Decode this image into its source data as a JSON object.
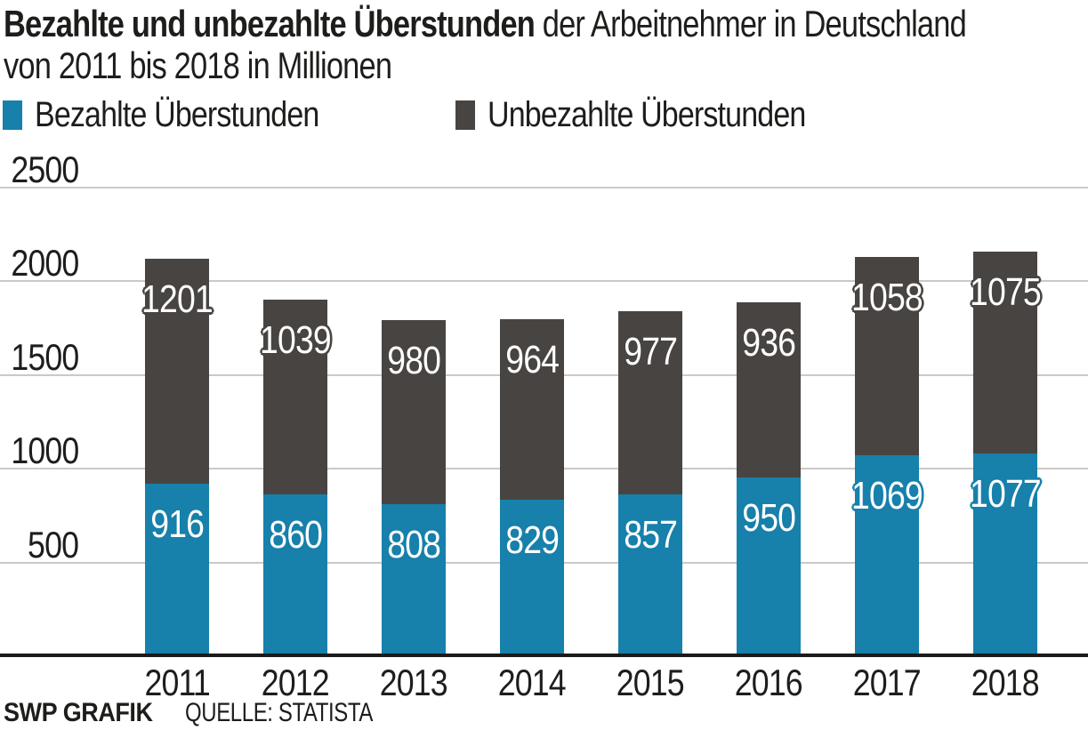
{
  "title": {
    "bold": "Bezahlte und unbezahlte Überstunden",
    "regular": " der Arbeitnehmer in Deutschland",
    "line2": "von 2011 bis 2018 in Millionen"
  },
  "legend": [
    {
      "label": "Bezahlte Überstunden",
      "color": "#1780ab"
    },
    {
      "label": "Unbezahlte Überstunden",
      "color": "#484442"
    }
  ],
  "footer": {
    "brand": "SWP GRAFIK",
    "source": "QUELLE: STATISTA"
  },
  "colors": {
    "paid": "#1780ab",
    "unpaid": "#484442",
    "gridline": "#cbc9c7",
    "axis_line": "#1a1a1a",
    "text": "#1d1d1b",
    "bar_label_text": "#ffffff"
  },
  "chart_data": {
    "type": "bar",
    "stacked": true,
    "title": "Bezahlte und unbezahlte Überstunden der Arbeitnehmer in Deutschland von 2011 bis 2018 in Millionen",
    "xlabel": "",
    "ylabel": "",
    "categories": [
      "2011",
      "2012",
      "2013",
      "2014",
      "2015",
      "2016",
      "2017",
      "2018"
    ],
    "series": [
      {
        "name": "Bezahlte Überstunden",
        "color": "#1780ab",
        "values": [
          916,
          860,
          808,
          829,
          857,
          950,
          1069,
          1077
        ]
      },
      {
        "name": "Unbezahlte Überstunden",
        "color": "#484442",
        "values": [
          1201,
          1039,
          980,
          964,
          977,
          936,
          1058,
          1075
        ]
      }
    ],
    "ylim": [
      0,
      2500
    ],
    "yticks": [
      500,
      1000,
      1500,
      2000,
      2500
    ],
    "grid": true,
    "legend_position": "top-left",
    "value_labels": "inside-top-of-each-segment"
  }
}
